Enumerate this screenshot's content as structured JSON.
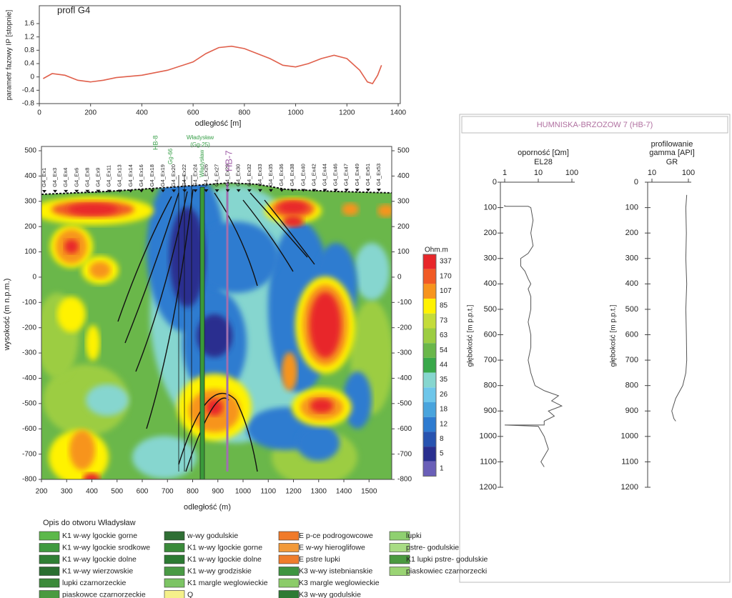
{
  "chart_data": [
    {
      "type": "line",
      "title": "profl G4",
      "xlabel": "odległość [m]",
      "ylabel": "parametr fazowy IP [stopnie]",
      "xlim": [
        0,
        1400
      ],
      "xticks": [
        0,
        200,
        400,
        600,
        800,
        1000,
        1200,
        1400
      ],
      "ylim": [
        -0.8,
        1.6
      ],
      "yticks": [
        -0.8,
        -0.4,
        0,
        0.4,
        0.8,
        1.2,
        1.6
      ],
      "x": [
        15,
        50,
        100,
        150,
        200,
        250,
        300,
        400,
        500,
        600,
        650,
        700,
        750,
        800,
        900,
        950,
        1000,
        1050,
        1100,
        1150,
        1200,
        1250,
        1280,
        1300,
        1320,
        1335
      ],
      "series": [
        {
          "color": "#e0604c",
          "values": [
            -0.05,
            0.1,
            0.05,
            -0.1,
            -0.15,
            -0.1,
            -0.02,
            0.05,
            0.2,
            0.45,
            0.7,
            0.88,
            0.92,
            0.85,
            0.55,
            0.35,
            0.3,
            0.4,
            0.55,
            0.65,
            0.55,
            0.2,
            -0.15,
            -0.2,
            0.05,
            0.35
          ]
        }
      ]
    },
    {
      "type": "contour",
      "xlabel": "odległość (m)",
      "ylabel": "wysokość (m n.p.m.)",
      "xlim": [
        200,
        1590
      ],
      "xticks": [
        200,
        300,
        400,
        500,
        600,
        700,
        800,
        900,
        1000,
        1100,
        1200,
        1300,
        1400,
        1500
      ],
      "ylim": [
        -800,
        500
      ],
      "yticks": [
        -800,
        -700,
        -600,
        -500,
        -400,
        -300,
        -200,
        -100,
        0,
        100,
        200,
        300,
        400,
        500
      ],
      "stations": [
        "G4_Ex1",
        "G4_Ex3",
        "G4_Ex4",
        "G4_Ex6",
        "G4_Ex8",
        "G4_Ex9",
        "G4_Ex11",
        "G4_Ex13",
        "G4_Ex14",
        "G4_Ex16",
        "G4_Ex18",
        "G4_Ex19",
        "G4_Ex20",
        "G4_Ex22",
        "G4_Ex24",
        "G4_Ex26",
        "G4_Ex27",
        "G4_Ex29",
        "G4_Ex30",
        "G4_Ex32",
        "G4_Ex33",
        "G4_Ex35",
        "G4_Ex36",
        "G4_Ex38",
        "G4_Ex40",
        "G4_Ex42",
        "G4_Ex44",
        "G4_Ex46",
        "G4_Ex47",
        "G4_Ex49",
        "G4_Ex51",
        "G4_Ex53"
      ],
      "wells": [
        {
          "label": "HB-8",
          "color": "#3aa04a"
        },
        {
          "label": "Gg-66",
          "color": "#3aa04a"
        },
        {
          "label": "Władysław",
          "color": "#3aa04a"
        },
        {
          "label": "(Gg-25)",
          "color": "#3aa04a"
        },
        {
          "label": "Władysław",
          "color": "#3aa04a"
        },
        {
          "label": "HB-7",
          "color": "#a060a8"
        }
      ],
      "colorbar": {
        "title": "Ohm.m",
        "labels": [
          337,
          170,
          107,
          85,
          73,
          63,
          54,
          44,
          35,
          26,
          18,
          12,
          8,
          5,
          1
        ],
        "colors": [
          "#e8262a",
          "#f15a25",
          "#f7941d",
          "#fff200",
          "#c4dc3a",
          "#9ccd42",
          "#6ab74a",
          "#39a84a",
          "#86d6cf",
          "#6ec6ea",
          "#49a4dd",
          "#2e7bd0",
          "#2853b0",
          "#2a2f8f",
          "#6a5fb8"
        ]
      }
    },
    {
      "type": "well-log",
      "title": "HUMNISKA-BRZOZOW 7 (HB-7)",
      "ylabel": "głębokość [m p.p.t.]",
      "ylim": [
        0,
        1200
      ],
      "yticks": [
        0,
        100,
        200,
        300,
        400,
        500,
        600,
        700,
        800,
        900,
        1000,
        1100,
        1200
      ],
      "tracks": [
        {
          "title_lines": [
            "oporność [Ωm]"
          ],
          "log": true,
          "xlim": [
            1,
            100
          ],
          "xticks": [
            1,
            10,
            100
          ],
          "series": [
            {
              "name": "EL28",
              "color": "#555555",
              "depth": [
                90,
                95,
                95,
                100,
                150,
                200,
                250,
                280,
                300,
                330,
                350,
                380,
                400,
                420,
                450,
                500,
                550,
                600,
                650,
                700,
                750,
                800,
                820,
                840,
                860,
                880,
                900,
                920,
                940,
                955,
                955,
                960,
                1000,
                1050,
                1100,
                1120
              ],
              "values": [
                1,
                1,
                5,
                6,
                7,
                6,
                7,
                5,
                3,
                3,
                4,
                5,
                6,
                5,
                6,
                6,
                5,
                6,
                6,
                5,
                6,
                8,
                15,
                40,
                25,
                50,
                20,
                30,
                15,
                15,
                1,
                10,
                15,
                20,
                12,
                15
              ]
            }
          ]
        },
        {
          "title_lines": [
            "profilowanie",
            "gamma [API]"
          ],
          "log": true,
          "xlim": [
            10,
            100
          ],
          "xticks": [
            10,
            100
          ],
          "series": [
            {
              "name": "GR",
              "color": "#555555",
              "depth": [
                50,
                100,
                200,
                300,
                400,
                500,
                600,
                700,
                750,
                800,
                850,
                900,
                930,
                940
              ],
              "values": [
                90,
                85,
                88,
                85,
                90,
                85,
                88,
                90,
                85,
                70,
                45,
                35,
                40,
                45
              ]
            }
          ]
        }
      ]
    }
  ],
  "legend": {
    "title": "Opis do otworu Władysław",
    "columns": [
      [
        {
          "label": "K1 w-wy lgockie gorne",
          "color": "#5cb84a"
        },
        {
          "label": "K1 w-wy lgockie srodkowe",
          "color": "#3f9a3f"
        },
        {
          "label": "K1 w-wy lgockie dolne",
          "color": "#2f7f34"
        },
        {
          "label": "K1 w-wy wierzowskie",
          "color": "#2a6e30"
        },
        {
          "label": "lupki czarnorzeckie",
          "color": "#3c8a3a"
        },
        {
          "label": "piaskowce czarnorzeckie",
          "color": "#4a9a40"
        }
      ],
      [
        {
          "label": "w-wy godulskie",
          "color": "#2f6e34"
        },
        {
          "label": "K1 w-wy lgockie gorne",
          "color": "#3a8a3a"
        },
        {
          "label": "K1 w-wy lgockie  dolne",
          "color": "#2c7a33"
        },
        {
          "label": "K1 w-wy grodziskie",
          "color": "#4a9a45"
        },
        {
          "label": "K1 margle weglowieckie",
          "color": "#7cc464"
        },
        {
          "label": "Q",
          "color": "#f5f08a"
        }
      ],
      [
        {
          "label": "E p-ce podrogowcowe",
          "color": "#f07a2a"
        },
        {
          "label": "E w-wy hieroglifowe",
          "color": "#f29a3a"
        },
        {
          "label": "E pstre lupki",
          "color": "#ef7d2c"
        },
        {
          "label": "K3 w-wy istebnianskie",
          "color": "#3e9440"
        },
        {
          "label": "K3 margle weglowieckie",
          "color": "#8ccc6a"
        },
        {
          "label": "K3 w-wy godulskie",
          "color": "#2e7a34"
        }
      ],
      [
        {
          "label": "lupki",
          "color": "#8fd070"
        },
        {
          "label": "pstre- godulskie",
          "color": "#a8dc84"
        },
        {
          "label": "K1 lupki pstre- godulskie",
          "color": "#4a9a40"
        },
        {
          "label": "piaskowiec czarnorzecki",
          "color": "#9ad474"
        }
      ]
    ]
  }
}
